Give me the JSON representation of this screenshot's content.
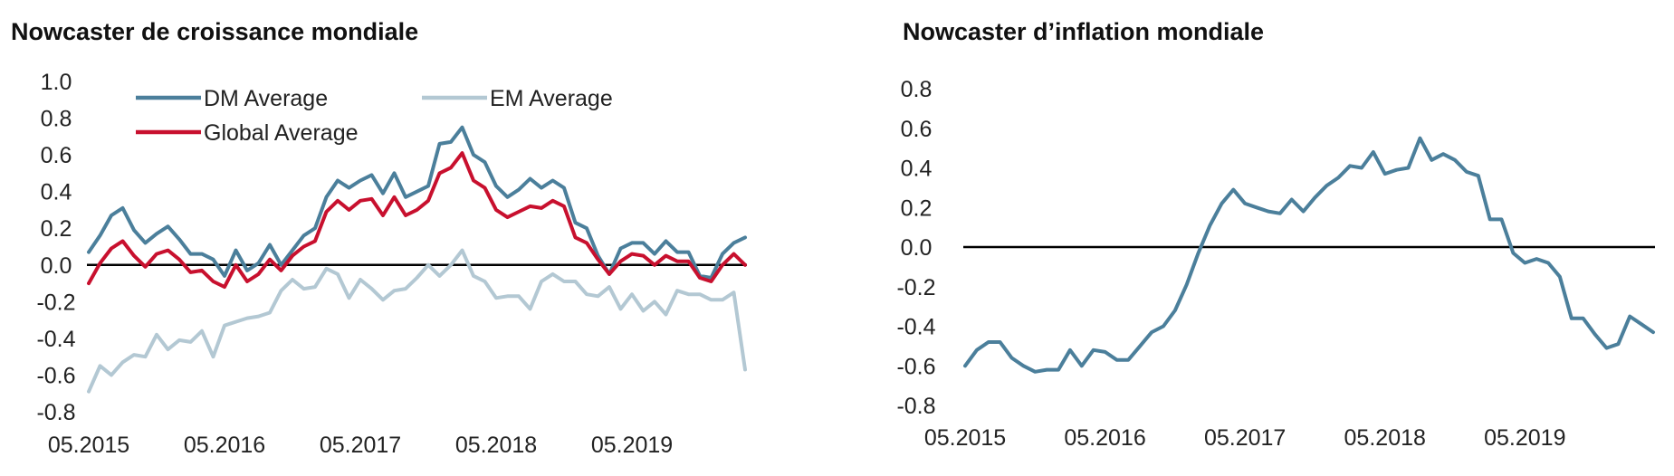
{
  "chart_data": [
    {
      "type": "line",
      "title": "Nowcaster de croissance mondiale",
      "xlabel": "",
      "ylabel": "",
      "ylim": [
        -0.8,
        1.0
      ],
      "yticks": [
        "1.0",
        "0.8",
        "0.6",
        "0.4",
        "0.2",
        "0.0",
        "-0.2",
        "-0.4",
        "-0.6",
        "-0.8"
      ],
      "xticks": [
        "05.2015",
        "05.2016",
        "05.2017",
        "05.2018",
        "05.2019"
      ],
      "x_start": "05.2015",
      "legend_position": "top",
      "grid": false,
      "series": [
        {
          "name": "DM Average",
          "color": "#4b7f9b",
          "values": [
            0.07,
            0.16,
            0.27,
            0.31,
            0.19,
            0.12,
            0.17,
            0.21,
            0.14,
            0.06,
            0.06,
            0.03,
            -0.06,
            0.08,
            -0.03,
            0.01,
            0.11,
            0.0,
            0.08,
            0.16,
            0.2,
            0.37,
            0.46,
            0.42,
            0.46,
            0.49,
            0.39,
            0.5,
            0.37,
            0.4,
            0.43,
            0.66,
            0.67,
            0.75,
            0.6,
            0.56,
            0.43,
            0.37,
            0.41,
            0.47,
            0.42,
            0.46,
            0.42,
            0.23,
            0.2,
            0.05,
            -0.05,
            0.09,
            0.12,
            0.12,
            0.06,
            0.13,
            0.07,
            0.07,
            -0.06,
            -0.07,
            0.06,
            0.12,
            0.15
          ]
        },
        {
          "name": "EM Average",
          "color": "#b3c8d3",
          "values": [
            -0.69,
            -0.55,
            -0.6,
            -0.53,
            -0.49,
            -0.5,
            -0.38,
            -0.46,
            -0.41,
            -0.42,
            -0.36,
            -0.5,
            -0.33,
            -0.31,
            -0.29,
            -0.28,
            -0.26,
            -0.14,
            -0.08,
            -0.13,
            -0.12,
            -0.02,
            -0.05,
            -0.18,
            -0.08,
            -0.13,
            -0.19,
            -0.14,
            -0.13,
            -0.07,
            0.0,
            -0.06,
            0.0,
            0.08,
            -0.06,
            -0.09,
            -0.18,
            -0.17,
            -0.17,
            -0.24,
            -0.09,
            -0.05,
            -0.09,
            -0.09,
            -0.16,
            -0.17,
            -0.12,
            -0.24,
            -0.16,
            -0.25,
            -0.2,
            -0.27,
            -0.14,
            -0.16,
            -0.16,
            -0.19,
            -0.19,
            -0.15,
            -0.57
          ]
        },
        {
          "name": "Global Average",
          "color": "#c8102e",
          "values": [
            -0.1,
            0.01,
            0.09,
            0.13,
            0.05,
            -0.01,
            0.06,
            0.08,
            0.03,
            -0.04,
            -0.03,
            -0.09,
            -0.12,
            0.0,
            -0.09,
            -0.05,
            0.03,
            -0.03,
            0.05,
            0.1,
            0.13,
            0.29,
            0.35,
            0.3,
            0.35,
            0.36,
            0.27,
            0.37,
            0.27,
            0.3,
            0.35,
            0.5,
            0.53,
            0.61,
            0.46,
            0.42,
            0.3,
            0.26,
            0.29,
            0.32,
            0.31,
            0.35,
            0.32,
            0.15,
            0.12,
            0.03,
            -0.05,
            0.02,
            0.06,
            0.05,
            0.0,
            0.05,
            0.02,
            0.02,
            -0.07,
            -0.09,
            0.0,
            0.06,
            0.0
          ]
        }
      ]
    },
    {
      "type": "line",
      "title": "Nowcaster d’inflation mondiale",
      "xlabel": "",
      "ylabel": "",
      "ylim": [
        -0.8,
        0.8
      ],
      "yticks": [
        "0.8",
        "0.6",
        "0.4",
        "0.2",
        "0.0",
        "-0.2",
        "-0.4",
        "-0.6",
        "-0.8"
      ],
      "xticks": [
        "05.2015",
        "05.2016",
        "05.2017",
        "05.2018",
        "05.2019"
      ],
      "x_start": "05.2015",
      "grid": false,
      "series": [
        {
          "name": "",
          "color": "#4b7f9b",
          "values": [
            -0.6,
            -0.52,
            -0.48,
            -0.48,
            -0.56,
            -0.6,
            -0.63,
            -0.62,
            -0.62,
            -0.52,
            -0.6,
            -0.52,
            -0.53,
            -0.57,
            -0.57,
            -0.5,
            -0.43,
            -0.4,
            -0.32,
            -0.19,
            -0.03,
            0.11,
            0.22,
            0.29,
            0.22,
            0.2,
            0.18,
            0.17,
            0.24,
            0.18,
            0.25,
            0.31,
            0.35,
            0.41,
            0.4,
            0.48,
            0.37,
            0.39,
            0.4,
            0.55,
            0.44,
            0.47,
            0.44,
            0.38,
            0.36,
            0.14,
            0.14,
            -0.03,
            -0.08,
            -0.06,
            -0.08,
            -0.15,
            -0.36,
            -0.36,
            -0.44,
            -0.51,
            -0.49,
            -0.35,
            -0.39,
            -0.43
          ]
        }
      ]
    }
  ]
}
